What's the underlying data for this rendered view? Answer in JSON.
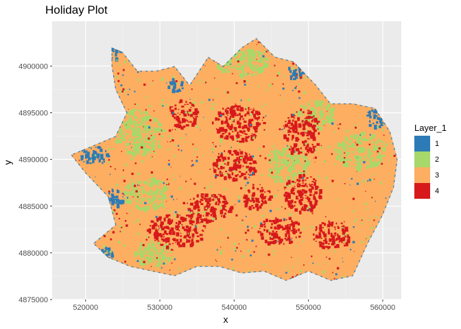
{
  "chart_data": {
    "type": "heatmap",
    "title": "Holiday Plot",
    "xlabel": "x",
    "ylabel": "y",
    "xlim": [
      515500,
      562500
    ],
    "ylim": [
      4875000,
      4904800
    ],
    "x_ticks": [
      520000,
      530000,
      540000,
      550000,
      560000
    ],
    "x_tick_labels": [
      "520000",
      "530000",
      "540000",
      "550000",
      "560000"
    ],
    "y_ticks": [
      4875000,
      4880000,
      4885000,
      4890000,
      4895000,
      4900000
    ],
    "y_tick_labels": [
      "4875000",
      "4880000",
      "4885000",
      "4890000",
      "4895000",
      "4900000"
    ],
    "grid": true,
    "legend": {
      "title": "Layer_1",
      "placement": "right",
      "entries": [
        {
          "label": "1",
          "color": "#2c7bb6"
        },
        {
          "label": "2",
          "color": "#a6d96a"
        },
        {
          "label": "3",
          "color": "#fdae61"
        },
        {
          "label": "4",
          "color": "#d7191c"
        }
      ]
    },
    "region_outline": [
      [
        523500,
        4902000
      ],
      [
        525000,
        4901500
      ],
      [
        527000,
        4899500
      ],
      [
        529500,
        4899500
      ],
      [
        532000,
        4900000
      ],
      [
        534000,
        4898000
      ],
      [
        536500,
        4901000
      ],
      [
        538500,
        4900000
      ],
      [
        541000,
        4902000
      ],
      [
        543000,
        4903000
      ],
      [
        545500,
        4901000
      ],
      [
        548000,
        4900500
      ],
      [
        551000,
        4898000
      ],
      [
        553000,
        4896000
      ],
      [
        556000,
        4896000
      ],
      [
        559000,
        4895500
      ],
      [
        561000,
        4893000
      ],
      [
        562000,
        4890000
      ],
      [
        561500,
        4887000
      ],
      [
        560000,
        4884000
      ],
      [
        558000,
        4881000
      ],
      [
        556000,
        4877500
      ],
      [
        553000,
        4877000
      ],
      [
        550000,
        4878000
      ],
      [
        547000,
        4877000
      ],
      [
        544000,
        4878000
      ],
      [
        541000,
        4877800
      ],
      [
        538000,
        4878500
      ],
      [
        535000,
        4878500
      ],
      [
        532000,
        4877500
      ],
      [
        529000,
        4878000
      ],
      [
        526000,
        4878500
      ],
      [
        523000,
        4879500
      ],
      [
        521000,
        4881000
      ],
      [
        524000,
        4883000
      ],
      [
        523000,
        4886000
      ],
      [
        520000,
        4888500
      ],
      [
        518000,
        4890500
      ],
      [
        521000,
        4891500
      ],
      [
        524000,
        4892500
      ],
      [
        525500,
        4895000
      ],
      [
        524000,
        4897500
      ],
      [
        523500,
        4900000
      ]
    ],
    "clusters": [
      {
        "value": 3,
        "x": 540000,
        "y": 4887000,
        "rx": 16000,
        "ry": 8500
      },
      {
        "value": 2,
        "x": 527000,
        "y": 4893000,
        "rx": 3500,
        "ry": 2500
      },
      {
        "value": 2,
        "x": 547000,
        "y": 4889500,
        "rx": 3000,
        "ry": 2000
      },
      {
        "value": 2,
        "x": 557000,
        "y": 4891000,
        "rx": 3500,
        "ry": 2000
      },
      {
        "value": 2,
        "x": 541000,
        "y": 4900500,
        "rx": 3500,
        "ry": 1500
      },
      {
        "value": 2,
        "x": 528000,
        "y": 4886500,
        "rx": 3000,
        "ry": 1800
      },
      {
        "value": 2,
        "x": 551000,
        "y": 4895000,
        "rx": 2500,
        "ry": 1500
      },
      {
        "value": 2,
        "x": 529000,
        "y": 4880000,
        "rx": 2500,
        "ry": 1500
      },
      {
        "value": 4,
        "x": 540500,
        "y": 4894000,
        "rx": 3500,
        "ry": 2000
      },
      {
        "value": 4,
        "x": 540000,
        "y": 4889500,
        "rx": 3000,
        "ry": 1800
      },
      {
        "value": 4,
        "x": 549000,
        "y": 4893000,
        "rx": 2500,
        "ry": 2500
      },
      {
        "value": 4,
        "x": 549000,
        "y": 4886500,
        "rx": 2500,
        "ry": 2000
      },
      {
        "value": 4,
        "x": 546000,
        "y": 4882500,
        "rx": 3000,
        "ry": 1500
      },
      {
        "value": 4,
        "x": 532000,
        "y": 4882500,
        "rx": 4000,
        "ry": 1800
      },
      {
        "value": 4,
        "x": 536500,
        "y": 4885000,
        "rx": 3000,
        "ry": 1500
      },
      {
        "value": 4,
        "x": 553000,
        "y": 4882000,
        "rx": 2500,
        "ry": 1500
      },
      {
        "value": 4,
        "x": 533000,
        "y": 4895000,
        "rx": 2000,
        "ry": 1500
      },
      {
        "value": 4,
        "x": 543000,
        "y": 4886000,
        "rx": 2000,
        "ry": 1200
      },
      {
        "value": 1,
        "x": 521000,
        "y": 4890500,
        "rx": 2000,
        "ry": 1000
      },
      {
        "value": 1,
        "x": 524000,
        "y": 4886000,
        "rx": 1200,
        "ry": 1000
      },
      {
        "value": 1,
        "x": 559000,
        "y": 4894500,
        "rx": 1500,
        "ry": 1000
      },
      {
        "value": 1,
        "x": 524000,
        "y": 4901500,
        "rx": 800,
        "ry": 800
      },
      {
        "value": 1,
        "x": 532000,
        "y": 4898000,
        "rx": 1000,
        "ry": 800
      },
      {
        "value": 1,
        "x": 548000,
        "y": 4899500,
        "rx": 1200,
        "ry": 800
      },
      {
        "value": 1,
        "x": 522000,
        "y": 4880000,
        "rx": 1500,
        "ry": 800
      }
    ]
  }
}
